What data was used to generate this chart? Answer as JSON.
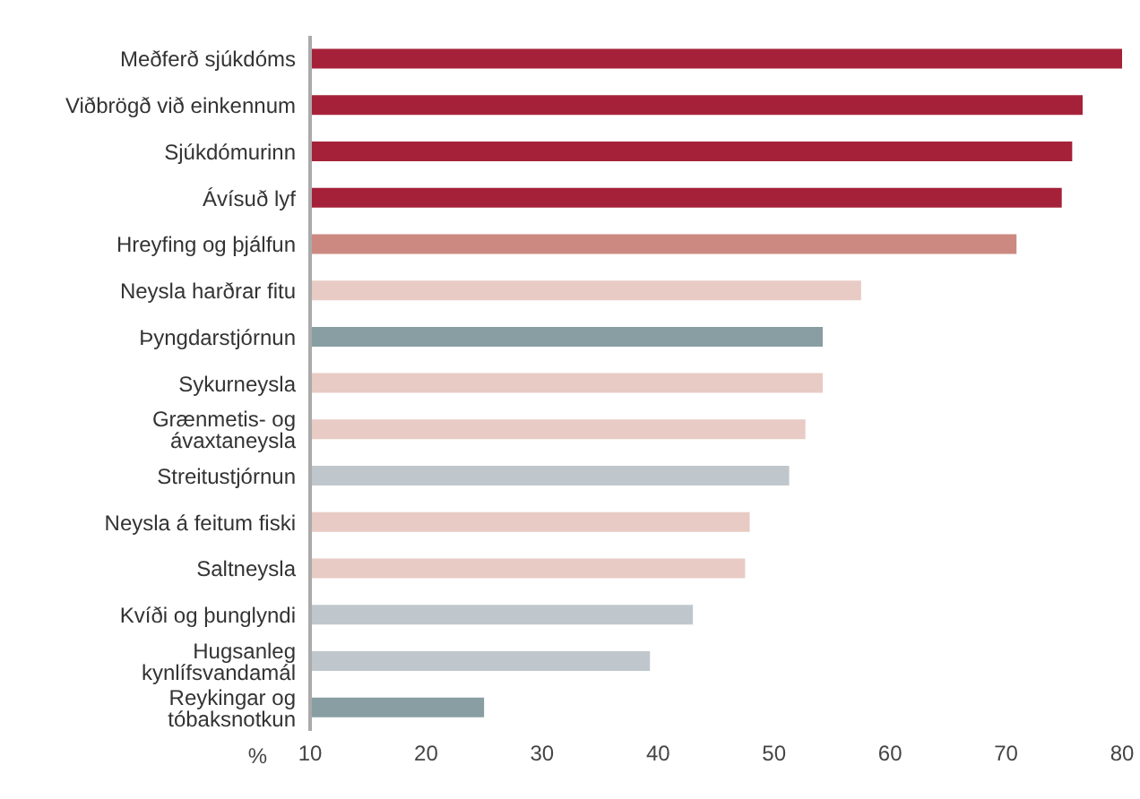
{
  "chart_data": {
    "type": "bar",
    "orientation": "horizontal",
    "xlabel": "%",
    "categories": [
      "Meðferð sjúkdóms",
      "Viðbrögð við einkennum",
      "Sjúkdómurinn",
      "Ávísuð lyf",
      "Hreyfing og þjálfun",
      "Neysla harðrar fitu",
      "Þyngdarstjórnun",
      "Sykurneysla",
      "Grænmetis- og ávaxtaneysla",
      "Streitustjórnun",
      "Neysla á feitum fiski",
      "Saltneysla",
      "Kvíði og þunglyndi",
      "Hugsanleg kynlífsvandamál",
      "Reykingar og tóbaksnotkun"
    ],
    "values": [
      80,
      76.6,
      75.7,
      74.8,
      70.9,
      57.5,
      54.2,
      54.2,
      52.7,
      51.3,
      47.9,
      47.5,
      43.0,
      39.3,
      25.0
    ],
    "colors": [
      "#a52139",
      "#a52139",
      "#a52139",
      "#a52139",
      "#cc8981",
      "#e8cbc4",
      "#889ea3",
      "#e8cbc4",
      "#e8cbc4",
      "#bfc7cc",
      "#e8cbc4",
      "#e8cbc4",
      "#bfc7cc",
      "#bfc7cc",
      "#889ea3"
    ],
    "xlim": [
      10,
      80
    ],
    "xticks": [
      10,
      20,
      30,
      40,
      50,
      60,
      70,
      80
    ],
    "grid": false,
    "legend": false
  }
}
